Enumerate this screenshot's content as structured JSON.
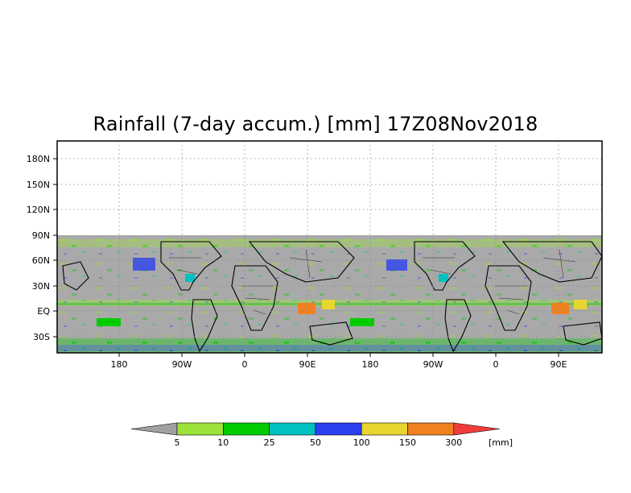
{
  "title": "Rainfall (7-day accum.) [mm] 17Z08Nov2018",
  "map": {
    "projection": "cylindrical, longitude repeated twice",
    "lat_labels": [
      "180N",
      "150N",
      "120N",
      "90N",
      "60N",
      "30N",
      "EQ",
      "30S"
    ],
    "lon_labels": [
      "180",
      "90W",
      "0",
      "90E",
      "180",
      "90W",
      "0",
      "90E"
    ],
    "data_coverage_top": "90N",
    "background": "#a9a9a9",
    "grid": "dotted"
  },
  "colorbar": {
    "unit": "[mm]",
    "thresholds": [
      "5",
      "10",
      "25",
      "50",
      "100",
      "150",
      "300"
    ],
    "colors": [
      "#a0a0a0",
      "#9be33b",
      "#00cc00",
      "#00c0c0",
      "#2a40f0",
      "#e8d530",
      "#f08020",
      "#f03c3c"
    ]
  }
}
